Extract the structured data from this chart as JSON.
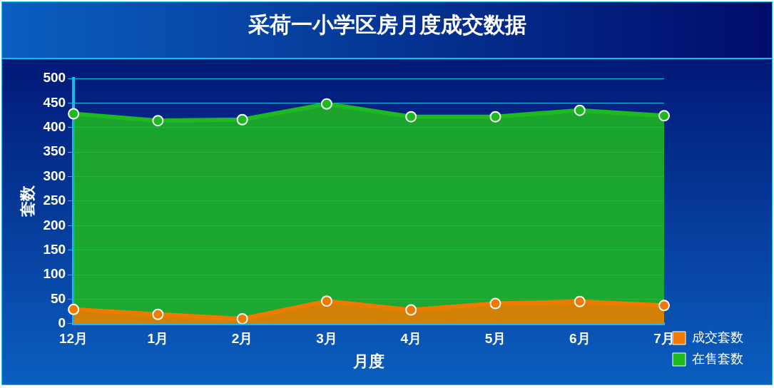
{
  "chart_data": {
    "type": "area",
    "title": "采荷一小学区房月度成交数据",
    "xlabel": "月度",
    "ylabel": "套数",
    "categories": [
      "12月",
      "1月",
      "2月",
      "3月",
      "4月",
      "5月",
      "6月",
      "7月"
    ],
    "series": [
      {
        "name": "在售套数",
        "color": "#1fb81f",
        "values": [
          428,
          414,
          416,
          448,
          422,
          422,
          435,
          424
        ]
      },
      {
        "name": "成交套数",
        "color": "#ee7a00",
        "values": [
          29,
          19,
          10,
          46,
          28,
          41,
          45,
          37
        ]
      }
    ],
    "ylim": [
      0,
      500
    ],
    "yticks": [
      0,
      50,
      100,
      150,
      200,
      250,
      300,
      350,
      400,
      450,
      500
    ],
    "grid": "y",
    "legend": "bottom right",
    "marker": "circle"
  }
}
